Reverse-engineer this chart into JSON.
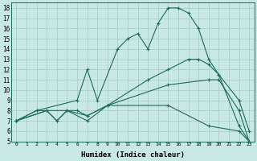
{
  "xlabel": "Humidex (Indice chaleur)",
  "xlim": [
    -0.5,
    23.5
  ],
  "ylim": [
    5,
    18.5
  ],
  "xticks": [
    0,
    1,
    2,
    3,
    4,
    5,
    6,
    7,
    8,
    9,
    10,
    11,
    12,
    13,
    14,
    15,
    16,
    17,
    18,
    19,
    20,
    21,
    22,
    23
  ],
  "yticks": [
    5,
    6,
    7,
    8,
    9,
    10,
    11,
    12,
    13,
    14,
    15,
    16,
    17,
    18
  ],
  "bg_color": "#c8e8e4",
  "grid_color": "#a8c8c4",
  "line_color": "#1a6b5a",
  "lines": [
    {
      "x": [
        0,
        2,
        6,
        7,
        8,
        10,
        11,
        12,
        13,
        14,
        15,
        16,
        17,
        18,
        19,
        20,
        22,
        23
      ],
      "y": [
        7,
        8,
        9,
        12,
        9,
        14,
        15,
        15.5,
        14,
        16.5,
        18,
        18,
        17.5,
        16,
        13,
        11.5,
        6.5,
        5
      ]
    },
    {
      "x": [
        0,
        2,
        6,
        7,
        9,
        13,
        15,
        17,
        18,
        19,
        20,
        22,
        23
      ],
      "y": [
        7,
        8,
        8,
        7.5,
        8.5,
        11,
        12,
        13,
        13,
        12.5,
        11.5,
        9,
        6
      ]
    },
    {
      "x": [
        0,
        3,
        4,
        5,
        7,
        9,
        15,
        19,
        20,
        22,
        23
      ],
      "y": [
        7,
        8,
        7,
        8,
        7.5,
        8.5,
        10.5,
        11,
        11,
        8,
        5
      ]
    },
    {
      "x": [
        0,
        3,
        4,
        5,
        7,
        9,
        15,
        19,
        22,
        23
      ],
      "y": [
        7,
        8,
        7,
        8,
        7,
        8.5,
        8.5,
        6.5,
        6,
        5
      ]
    }
  ]
}
